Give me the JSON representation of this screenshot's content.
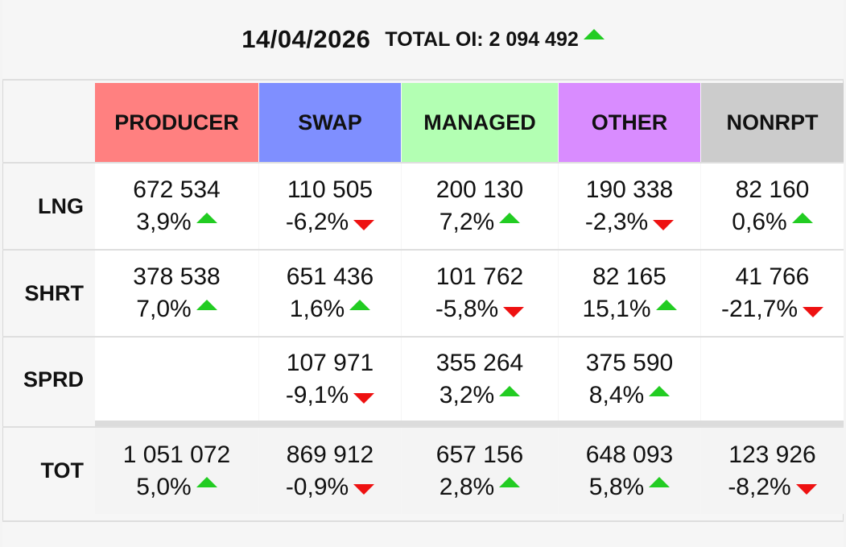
{
  "header": {
    "date": "14/04/2026",
    "total_oi": "TOTAL OI: 2 094 492",
    "total_oi_trend": "up"
  },
  "columns": [
    {
      "label": "PRODUCER",
      "color": "#ff8080"
    },
    {
      "label": "SWAP",
      "color": "#7f8fff"
    },
    {
      "label": "MANAGED",
      "color": "#b3ffb3"
    },
    {
      "label": "OTHER",
      "color": "#d98cff"
    },
    {
      "label": "NONRPT",
      "color": "#cccccc"
    }
  ],
  "rows": [
    {
      "label": "LNG",
      "cells": [
        {
          "value": "672 534",
          "pct": "3,9%",
          "trend": "up"
        },
        {
          "value": "110 505",
          "pct": "-6,2%",
          "trend": "down"
        },
        {
          "value": "200 130",
          "pct": "7,2%",
          "trend": "up"
        },
        {
          "value": "190 338",
          "pct": "-2,3%",
          "trend": "down"
        },
        {
          "value": "82 160",
          "pct": "0,6%",
          "trend": "up"
        }
      ]
    },
    {
      "label": "SHRT",
      "cells": [
        {
          "value": "378 538",
          "pct": "7,0%",
          "trend": "up"
        },
        {
          "value": "651 436",
          "pct": "1,6%",
          "trend": "up"
        },
        {
          "value": "101 762",
          "pct": "-5,8%",
          "trend": "down"
        },
        {
          "value": "82 165",
          "pct": "15,1%",
          "trend": "up"
        },
        {
          "value": "41 766",
          "pct": "-21,7%",
          "trend": "down"
        }
      ]
    },
    {
      "label": "SPRD",
      "cells": [
        {
          "value": "",
          "pct": "",
          "trend": ""
        },
        {
          "value": "107 971",
          "pct": "-9,1%",
          "trend": "down"
        },
        {
          "value": "355 264",
          "pct": "3,2%",
          "trend": "up"
        },
        {
          "value": "375 590",
          "pct": "8,4%",
          "trend": "up"
        },
        {
          "value": "",
          "pct": "",
          "trend": ""
        }
      ]
    },
    {
      "label": "TOT",
      "cells": [
        {
          "value": "1 051 072",
          "pct": "5,0%",
          "trend": "up"
        },
        {
          "value": "869 912",
          "pct": "-0,9%",
          "trend": "down"
        },
        {
          "value": "657 156",
          "pct": "2,8%",
          "trend": "up"
        },
        {
          "value": "648 093",
          "pct": "5,8%",
          "trend": "up"
        },
        {
          "value": "123 926",
          "pct": "-8,2%",
          "trend": "down"
        }
      ]
    }
  ],
  "colors": {
    "up": "#22cc22",
    "down": "#ee1111"
  }
}
